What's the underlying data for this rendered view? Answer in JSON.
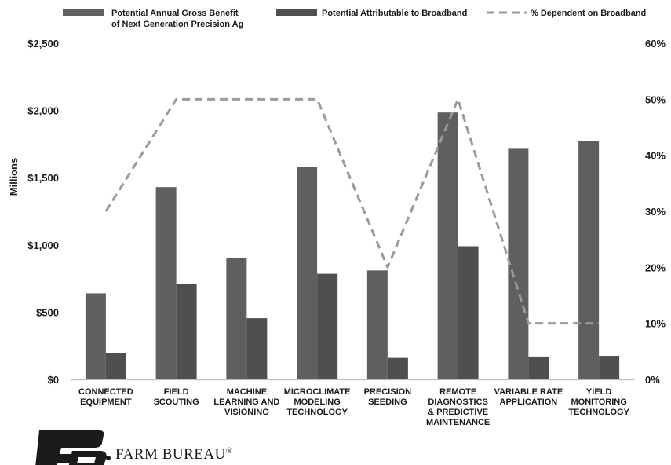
{
  "chart_data": {
    "type": "bar",
    "categories": [
      [
        "CONNECTED",
        "EQUIPMENT"
      ],
      [
        "FIELD",
        "SCOUTING"
      ],
      [
        "MACHINE",
        "LEARNING AND",
        "VISIONING"
      ],
      [
        "MICROCLIMATE",
        "MODELING",
        "TECHNOLOGY"
      ],
      [
        "PRECISION",
        "SEEDING"
      ],
      [
        "REMOTE",
        "DIAGNOSTICS",
        "& PREDICTIVE",
        "MAINTENANCE"
      ],
      [
        "VARIABLE RATE",
        "APPLICATION"
      ],
      [
        "YIELD",
        "MONITORING",
        "TECHNOLOGY"
      ]
    ],
    "series": [
      {
        "name": "Potential Annual Gross Benefit of Next Generation Precision Ag",
        "name_lines": [
          "Potential Annual Gross Benefit",
          "of Next Generation Precision Ag"
        ],
        "type": "bar",
        "axis": "left",
        "color": "#5f5f5f",
        "values": [
          640,
          1430,
          905,
          1580,
          810,
          1985,
          1715,
          1770
        ]
      },
      {
        "name": "Potential Attributable to Broadband",
        "type": "bar",
        "axis": "left",
        "color": "#4f4f4f",
        "values": [
          195,
          710,
          455,
          785,
          160,
          990,
          170,
          175
        ]
      },
      {
        "name": "% Dependent on Broadband",
        "type": "line",
        "axis": "right",
        "style": "dashed",
        "color": "#9a9a9a",
        "values": [
          30,
          50,
          50,
          50,
          20,
          50,
          10,
          10
        ]
      }
    ],
    "ylabel": "Millions",
    "ylim": [
      0,
      2500
    ],
    "yticks": [
      "$0",
      "$500",
      "$1,000",
      "$1,500",
      "$2,000",
      "$2,500"
    ],
    "ytick_values": [
      0,
      500,
      1000,
      1500,
      2000,
      2500
    ],
    "y2lim": [
      0,
      60
    ],
    "y2ticks": [
      "0%",
      "10%",
      "20%",
      "30%",
      "40%",
      "50%",
      "60%"
    ],
    "y2tick_values": [
      0,
      10,
      20,
      30,
      40,
      50,
      60
    ],
    "grid": false,
    "legend_position": "top"
  },
  "logo": {
    "text": "FARM BUREAU",
    "mark": "®",
    "icon": "farm-bureau-fb-logo"
  },
  "colors": {
    "bar_gross": "#5f5f5f",
    "bar_broadband": "#4f4f4f",
    "line_dependent": "#9a9a9a",
    "axis": "#bdbdbd",
    "text": "#1a1a1a"
  }
}
